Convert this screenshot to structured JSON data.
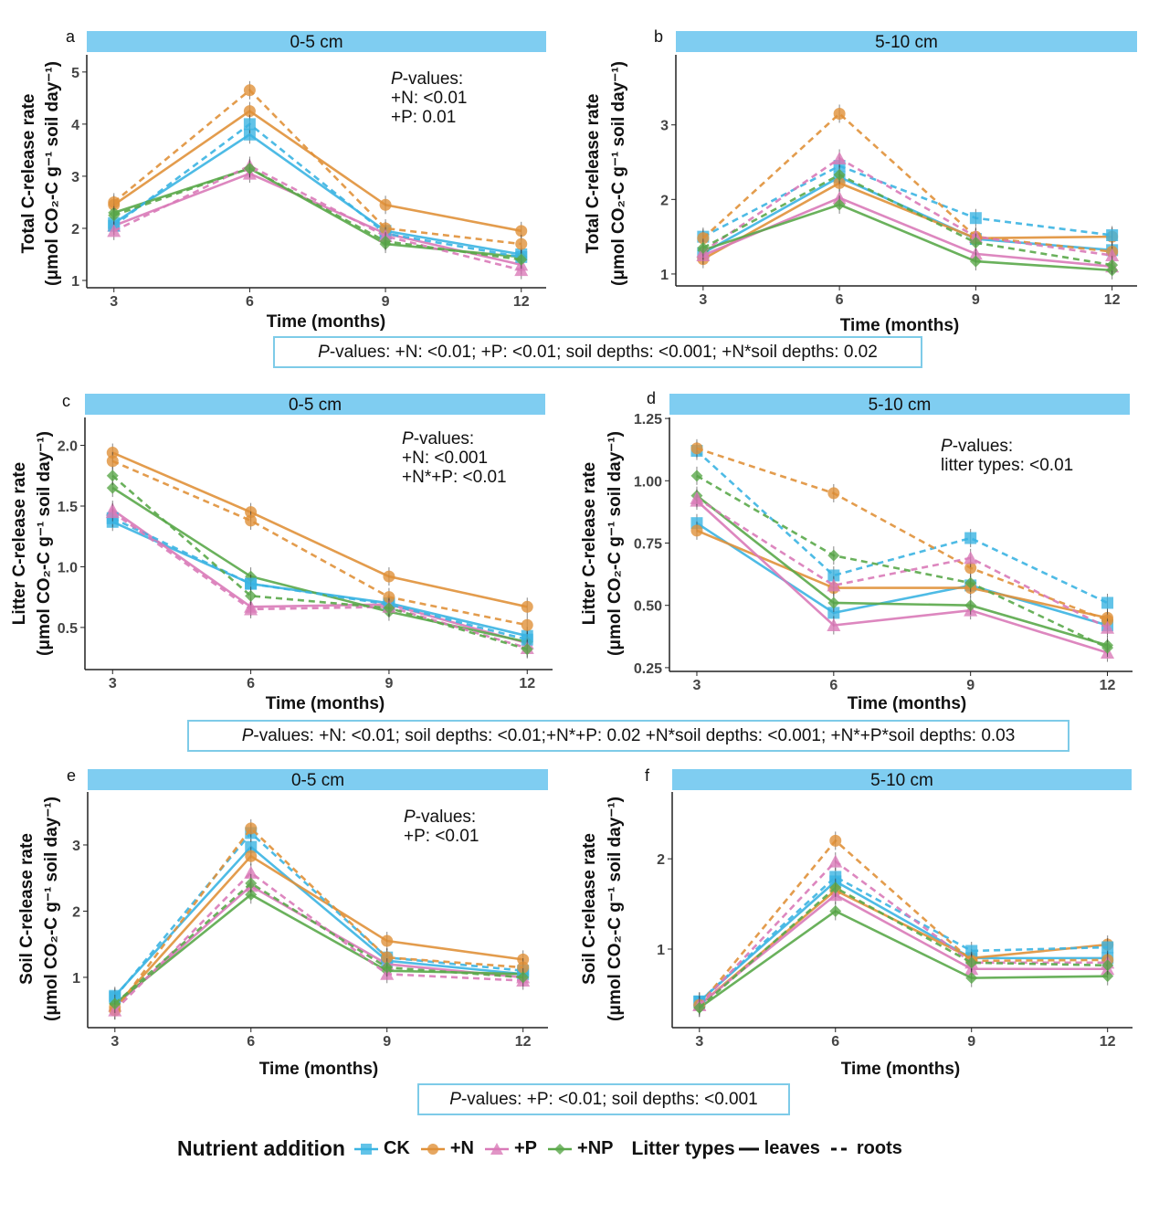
{
  "colors": {
    "CK": "#3bb4e2",
    "+N": "#e0913a",
    "+P": "#d97ab8",
    "+NP": "#5aa84a",
    "strip": "#7fcdf1",
    "box_border": "#7ecbe8"
  },
  "chart_data": [
    {
      "panel": "a",
      "type": "line",
      "title": "0-5 cm",
      "xlabel": "Time (months)",
      "ylabel_line1": "Total C-release rate",
      "ylabel_line2": "(μmol CO₂-C g⁻¹ soil day⁻¹)",
      "x": [
        3,
        6,
        9,
        12
      ],
      "xtick_labels": [
        "3",
        "6",
        "9",
        "12"
      ],
      "xlim": [
        2.4,
        12.55
      ],
      "yticks": [
        1,
        2,
        3,
        4,
        5
      ],
      "ytick_labels": [
        "1",
        "2",
        "3",
        "4",
        "5"
      ],
      "ylim": [
        0.86,
        5.33
      ],
      "annotation": {
        "p": "P",
        "title": "-values:",
        "lines": [
          "+N: <0.01",
          "+P: 0.01"
        ]
      },
      "series": [
        {
          "treatment": "CK",
          "litter": "leaves",
          "values": [
            2.1,
            3.8,
            1.95,
            1.5
          ]
        },
        {
          "treatment": "+N",
          "litter": "leaves",
          "values": [
            2.45,
            4.25,
            2.45,
            1.95
          ]
        },
        {
          "treatment": "+P",
          "litter": "leaves",
          "values": [
            2.05,
            3.05,
            1.9,
            1.3
          ]
        },
        {
          "treatment": "+NP",
          "litter": "leaves",
          "values": [
            2.3,
            3.15,
            1.7,
            1.45
          ]
        },
        {
          "treatment": "CK",
          "litter": "roots",
          "values": [
            2.05,
            4.0,
            1.9,
            1.45
          ]
        },
        {
          "treatment": "+N",
          "litter": "roots",
          "values": [
            2.5,
            4.65,
            2.0,
            1.7
          ]
        },
        {
          "treatment": "+P",
          "litter": "roots",
          "values": [
            1.95,
            3.2,
            1.85,
            1.2
          ]
        },
        {
          "treatment": "+NP",
          "litter": "roots",
          "values": [
            2.25,
            3.15,
            1.75,
            1.4
          ]
        }
      ]
    },
    {
      "panel": "b",
      "type": "line",
      "title": "5-10 cm",
      "xlabel": "Time (months)",
      "ylabel_line1": "Total C-release rate",
      "ylabel_line2": "(μmol CO₂-C g⁻¹ soil day⁻¹)",
      "x": [
        3,
        6,
        9,
        12
      ],
      "xtick_labels": [
        "3",
        "6",
        "9",
        "12"
      ],
      "xlim": [
        2.4,
        12.55
      ],
      "yticks": [
        1,
        2,
        3
      ],
      "ytick_labels": [
        "1",
        "2",
        "3"
      ],
      "ylim": [
        0.84,
        3.94
      ],
      "series": [
        {
          "treatment": "CK",
          "litter": "leaves",
          "values": [
            1.28,
            2.3,
            1.47,
            1.32
          ]
        },
        {
          "treatment": "+N",
          "litter": "leaves",
          "values": [
            1.2,
            2.22,
            1.48,
            1.5
          ]
        },
        {
          "treatment": "+P",
          "litter": "leaves",
          "values": [
            1.25,
            2.02,
            1.27,
            1.1
          ]
        },
        {
          "treatment": "+NP",
          "litter": "leaves",
          "values": [
            1.32,
            1.93,
            1.17,
            1.05
          ]
        },
        {
          "treatment": "CK",
          "litter": "roots",
          "values": [
            1.5,
            2.45,
            1.75,
            1.52
          ]
        },
        {
          "treatment": "+N",
          "litter": "roots",
          "values": [
            1.48,
            3.15,
            1.5,
            1.3
          ]
        },
        {
          "treatment": "+P",
          "litter": "roots",
          "values": [
            1.3,
            2.55,
            1.5,
            1.25
          ]
        },
        {
          "treatment": "+NP",
          "litter": "roots",
          "values": [
            1.35,
            2.33,
            1.42,
            1.12
          ]
        }
      ]
    },
    {
      "panel": "c",
      "type": "line",
      "title": "0-5 cm",
      "xlabel": "Time (months)",
      "ylabel_line1": "Litter C-release rate",
      "ylabel_line2": "(μmol CO₂-C g⁻¹ soil day⁻¹)",
      "x": [
        3,
        6,
        9,
        12
      ],
      "xtick_labels": [
        "3",
        "6",
        "9",
        "12"
      ],
      "xlim": [
        2.4,
        12.55
      ],
      "yticks": [
        0.5,
        1.0,
        1.5,
        2.0
      ],
      "ytick_labels": [
        "0.5",
        "1.0",
        "1.5",
        "2.0"
      ],
      "ylim": [
        0.153,
        2.23
      ],
      "annotation": {
        "p": "P",
        "title": "-values:",
        "lines": [
          "+N: <0.001",
          "+N*+P: <0.01"
        ]
      },
      "series": [
        {
          "treatment": "CK",
          "litter": "leaves",
          "values": [
            1.37,
            0.86,
            0.7,
            0.43
          ]
        },
        {
          "treatment": "+N",
          "litter": "leaves",
          "values": [
            1.94,
            1.45,
            0.92,
            0.67
          ]
        },
        {
          "treatment": "+P",
          "litter": "leaves",
          "values": [
            1.47,
            0.67,
            0.69,
            0.37
          ]
        },
        {
          "treatment": "+NP",
          "litter": "leaves",
          "values": [
            1.65,
            0.92,
            0.63,
            0.38
          ]
        },
        {
          "treatment": "CK",
          "litter": "roots",
          "values": [
            1.4,
            0.86,
            0.69,
            0.4
          ]
        },
        {
          "treatment": "+N",
          "litter": "roots",
          "values": [
            1.87,
            1.38,
            0.75,
            0.52
          ]
        },
        {
          "treatment": "+P",
          "litter": "roots",
          "values": [
            1.45,
            0.65,
            0.67,
            0.33
          ]
        },
        {
          "treatment": "+NP",
          "litter": "roots",
          "values": [
            1.75,
            0.76,
            0.66,
            0.32
          ]
        }
      ]
    },
    {
      "panel": "d",
      "type": "line",
      "title": "5-10 cm",
      "xlabel": "Time (months)",
      "ylabel_line1": "Litter C-release rate",
      "ylabel_line2": "(μmol CO₂-C g⁻¹ soil day⁻¹)",
      "x": [
        3,
        6,
        9,
        12
      ],
      "xtick_labels": [
        "3",
        "6",
        "9",
        "12"
      ],
      "xlim": [
        2.4,
        12.55
      ],
      "yticks": [
        0.25,
        0.5,
        0.75,
        1.0,
        1.25
      ],
      "ytick_labels": [
        "0.25",
        "0.50",
        "0.75",
        "1.00",
        "1.25"
      ],
      "ylim": [
        0.235,
        1.254
      ],
      "annotation": {
        "p": "P",
        "title": "-values:",
        "lines": [
          "litter types: <0.01"
        ]
      },
      "series": [
        {
          "treatment": "CK",
          "litter": "leaves",
          "values": [
            0.83,
            0.47,
            0.58,
            0.42
          ]
        },
        {
          "treatment": "+N",
          "litter": "leaves",
          "values": [
            0.8,
            0.57,
            0.57,
            0.45
          ]
        },
        {
          "treatment": "+P",
          "litter": "leaves",
          "values": [
            0.92,
            0.42,
            0.48,
            0.31
          ]
        },
        {
          "treatment": "+NP",
          "litter": "leaves",
          "values": [
            0.94,
            0.51,
            0.5,
            0.34
          ]
        },
        {
          "treatment": "CK",
          "litter": "roots",
          "values": [
            1.12,
            0.62,
            0.77,
            0.51
          ]
        },
        {
          "treatment": "+N",
          "litter": "roots",
          "values": [
            1.13,
            0.95,
            0.65,
            0.44
          ]
        },
        {
          "treatment": "+P",
          "litter": "roots",
          "values": [
            0.93,
            0.58,
            0.69,
            0.41
          ]
        },
        {
          "treatment": "+NP",
          "litter": "roots",
          "values": [
            1.02,
            0.7,
            0.59,
            0.33
          ]
        }
      ]
    },
    {
      "panel": "e",
      "type": "line",
      "title": "0-5 cm",
      "xlabel": "Time (months)",
      "ylabel_line1": "Soil C-release rate",
      "ylabel_line2": "(μmol CO₂-C g⁻¹ soil day⁻¹)",
      "x": [
        3,
        6,
        9,
        12
      ],
      "xtick_labels": [
        "3",
        "6",
        "9",
        "12"
      ],
      "xlim": [
        2.4,
        12.55
      ],
      "yticks": [
        1,
        2,
        3
      ],
      "ytick_labels": [
        "1",
        "2",
        "3"
      ],
      "ylim": [
        0.24,
        3.8
      ],
      "annotation": {
        "p": "P",
        "title": "-values:",
        "lines": [
          "+P: <0.01"
        ]
      },
      "series": [
        {
          "treatment": "CK",
          "litter": "leaves",
          "values": [
            0.72,
            2.97,
            1.25,
            1.05
          ]
        },
        {
          "treatment": "+N",
          "litter": "leaves",
          "values": [
            0.55,
            2.83,
            1.55,
            1.27
          ]
        },
        {
          "treatment": "+P",
          "litter": "leaves",
          "values": [
            0.57,
            2.38,
            1.2,
            1.0
          ]
        },
        {
          "treatment": "+NP",
          "litter": "leaves",
          "values": [
            0.6,
            2.25,
            1.1,
            1.05
          ]
        },
        {
          "treatment": "CK",
          "litter": "roots",
          "values": [
            0.7,
            3.18,
            1.3,
            1.1
          ]
        },
        {
          "treatment": "+N",
          "litter": "roots",
          "values": [
            0.5,
            3.25,
            1.3,
            1.15
          ]
        },
        {
          "treatment": "+P",
          "litter": "roots",
          "values": [
            0.5,
            2.58,
            1.05,
            0.95
          ]
        },
        {
          "treatment": "+NP",
          "litter": "roots",
          "values": [
            0.6,
            2.42,
            1.15,
            1.0
          ]
        }
      ]
    },
    {
      "panel": "f",
      "type": "line",
      "title": "5-10 cm",
      "xlabel": "Time (months)",
      "ylabel_line1": "Soil C-release rate",
      "ylabel_line2": "(μmol CO₂-C g⁻¹ soil day⁻¹)",
      "x": [
        3,
        6,
        9,
        12
      ],
      "xtick_labels": [
        "3",
        "6",
        "9",
        "12"
      ],
      "xlim": [
        2.4,
        12.55
      ],
      "yticks": [
        1,
        2
      ],
      "ytick_labels": [
        "1",
        "2"
      ],
      "ylim": [
        0.13,
        2.74
      ],
      "series": [
        {
          "treatment": "CK",
          "litter": "leaves",
          "values": [
            0.42,
            1.75,
            0.9,
            0.9
          ]
        },
        {
          "treatment": "+N",
          "litter": "leaves",
          "values": [
            0.38,
            1.65,
            0.9,
            1.05
          ]
        },
        {
          "treatment": "+P",
          "litter": "leaves",
          "values": [
            0.38,
            1.6,
            0.78,
            0.78
          ]
        },
        {
          "treatment": "+NP",
          "litter": "leaves",
          "values": [
            0.35,
            1.42,
            0.68,
            0.7
          ]
        },
        {
          "treatment": "CK",
          "litter": "roots",
          "values": [
            0.42,
            1.8,
            0.98,
            1.02
          ]
        },
        {
          "treatment": "+N",
          "litter": "roots",
          "values": [
            0.38,
            2.2,
            0.87,
            0.88
          ]
        },
        {
          "treatment": "+P",
          "litter": "roots",
          "values": [
            0.38,
            1.97,
            0.85,
            0.85
          ]
        },
        {
          "treatment": "+NP",
          "litter": "roots",
          "values": [
            0.35,
            1.68,
            0.85,
            0.82
          ]
        }
      ]
    }
  ],
  "boxes": [
    {
      "p": "P",
      "text": "-values: +N: <0.01; +P: <0.01; soil depths: <0.001; +N*soil depths: 0.02"
    },
    {
      "p": "P",
      "text": "-values: +N: <0.01; soil depths: <0.01;+N*+P: 0.02 +N*soil depths: <0.001; +N*+P*soil depths: 0.03"
    },
    {
      "p": "P",
      "text": "-values: +P: <0.01; soil depths: <0.001"
    }
  ],
  "legend": {
    "nutrient_title": "Nutrient addition",
    "nutrients": [
      {
        "key": "CK",
        "label": "CK",
        "shape": "square"
      },
      {
        "key": "+N",
        "label": "+N",
        "shape": "circle"
      },
      {
        "key": "+P",
        "label": "+P",
        "shape": "triangle"
      },
      {
        "key": "+NP",
        "label": "+NP",
        "shape": "diamond"
      }
    ],
    "litter_title": "Litter types",
    "litters": [
      {
        "label": "leaves",
        "style": "solid"
      },
      {
        "label": "roots",
        "style": "dashed"
      }
    ]
  }
}
